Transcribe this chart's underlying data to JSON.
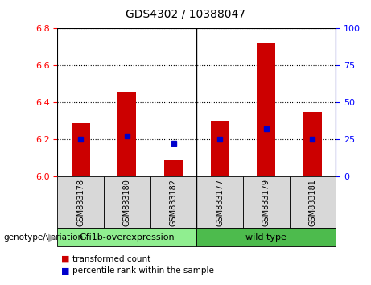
{
  "title": "GDS4302 / 10388047",
  "samples": [
    "GSM833178",
    "GSM833180",
    "GSM833182",
    "GSM833177",
    "GSM833179",
    "GSM833181"
  ],
  "bar_values": [
    6.29,
    6.46,
    6.09,
    6.3,
    6.72,
    6.35
  ],
  "percentile_values": [
    6.2,
    6.22,
    6.18,
    6.2,
    6.26,
    6.2
  ],
  "ylim_left": [
    6.0,
    6.8
  ],
  "ylim_right": [
    0,
    100
  ],
  "yticks_left": [
    6.0,
    6.2,
    6.4,
    6.6,
    6.8
  ],
  "yticks_right": [
    0,
    25,
    50,
    75,
    100
  ],
  "bar_color": "#cc0000",
  "dot_color": "#0000cc",
  "group1_label": "Gfi1b-overexpression",
  "group2_label": "wild type",
  "group1_color": "#90ee90",
  "group2_color": "#4dbb4d",
  "group1_indices": [
    0,
    1,
    2
  ],
  "group2_indices": [
    3,
    4,
    5
  ],
  "genotype_label": "genotype/variation",
  "legend_bar_label": "transformed count",
  "legend_dot_label": "percentile rank within the sample",
  "sample_bg_color": "#d8d8d8",
  "plot_bg": "#ffffff",
  "separator_index": 3,
  "bar_width": 0.4
}
